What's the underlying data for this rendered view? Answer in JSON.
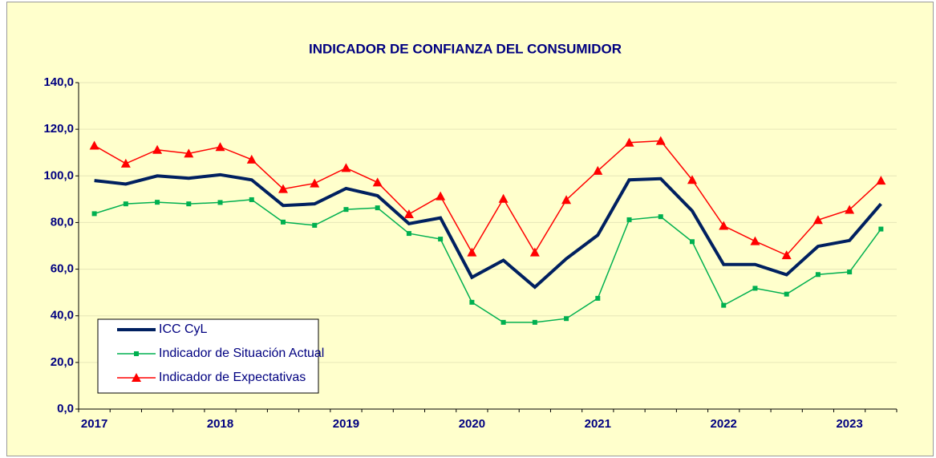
{
  "chart_data": {
    "type": "line",
    "title": "INDICADOR  DE CONFIANZA  DEL CONSUMIDOR",
    "categories": [
      "2017",
      null,
      null,
      null,
      "2018",
      null,
      null,
      null,
      "2019",
      null,
      null,
      null,
      "2020",
      null,
      null,
      null,
      "2021",
      null,
      null,
      null,
      "2022",
      null,
      null,
      null,
      "2023",
      null
    ],
    "series": [
      {
        "name": "ICC CyL",
        "color": "#002060",
        "marker": "none",
        "values": [
          98,
          96.5,
          100,
          99,
          100.5,
          98.3,
          87.3,
          88,
          94.6,
          91.5,
          79.5,
          82,
          56.5,
          63.8,
          52.3,
          64.5,
          74.6,
          98.3,
          98.8,
          85,
          62,
          62,
          57.6,
          69.8,
          72.3,
          88
        ]
      },
      {
        "name": "Indicador de Situación Actual",
        "color": "#00B050",
        "marker": "square",
        "values": [
          83.8,
          88,
          88.7,
          88,
          88.6,
          89.8,
          80.2,
          78.8,
          85.6,
          86.3,
          75.3,
          72.9,
          45.8,
          37.2,
          37.2,
          38.8,
          47.5,
          81.2,
          82.5,
          71.8,
          44.5,
          51.8,
          49.3,
          57.7,
          58.8,
          77.2
        ]
      },
      {
        "name": "Indicador de Expectativas",
        "color": "#FF0000",
        "marker": "triangle",
        "values": [
          113,
          105.3,
          111.2,
          109.6,
          112.4,
          107,
          94.4,
          96.8,
          103.4,
          97.2,
          83.6,
          91.3,
          67.2,
          90.2,
          67.2,
          89.7,
          102.2,
          114.3,
          115,
          98.3,
          78.6,
          72,
          66,
          81.1,
          85.5,
          98
        ]
      }
    ],
    "ylim": [
      0,
      140
    ],
    "yticks": [
      {
        "value": 0,
        "label": "0,0"
      },
      {
        "value": 20,
        "label": "20,0"
      },
      {
        "value": 40,
        "label": "40,0"
      },
      {
        "value": 60,
        "label": "60,0"
      },
      {
        "value": 80,
        "label": "80,0"
      },
      {
        "value": 100,
        "label": "100,0"
      },
      {
        "value": 120,
        "label": "120,0"
      },
      {
        "value": 140,
        "label": "140,0"
      }
    ],
    "grid": true,
    "legend": "lower left",
    "background": "#FFFFCC"
  }
}
